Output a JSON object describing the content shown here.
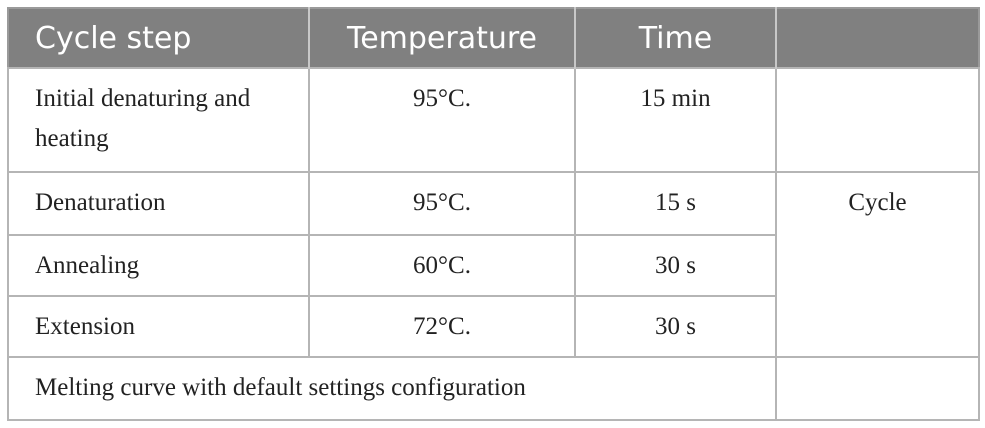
{
  "table": {
    "header": [
      "Cycle step",
      "Temperature",
      "Time"
    ],
    "rows": [
      [
        "Initial denaturing and heating",
        "95°C.",
        "15 min"
      ],
      [
        "Denaturation",
        "95°C.",
        "15 s",
        "Cycle"
      ],
      [
        "Annealing",
        "60°C.",
        "30 s"
      ],
      [
        "Extension",
        "72°C.",
        "30 s"
      ],
      [
        "Melting curve with default settings configuration"
      ]
    ]
  }
}
